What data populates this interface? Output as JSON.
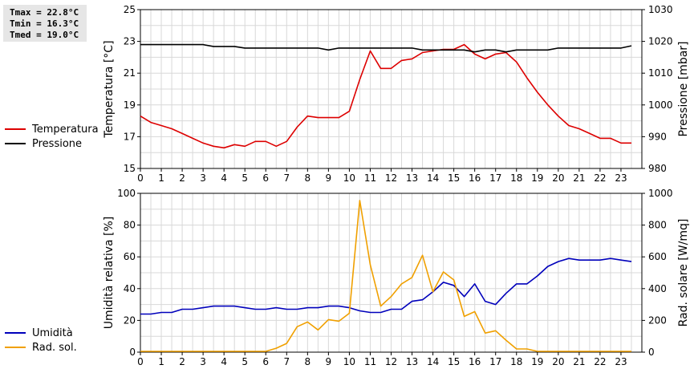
{
  "stats": {
    "tmax": "Tmax = 22.8°C",
    "tmin": "Tmin = 16.3°C",
    "tmed": "Tmed = 19.0°C"
  },
  "legend_top": [
    {
      "label": "Temperatura",
      "color": "#dd0000"
    },
    {
      "label": "Pressione",
      "color": "#000000"
    }
  ],
  "legend_bottom": [
    {
      "label": "Umidità",
      "color": "#0000bb"
    },
    {
      "label": "Rad. sol.",
      "color": "#f0a000"
    }
  ],
  "chart_data": [
    {
      "type": "line",
      "ylabel": "Temperatura [°C]",
      "y2label": "Pressione [mbar]",
      "xlim": [
        0,
        24
      ],
      "xticks": [
        0,
        1,
        2,
        3,
        4,
        5,
        6,
        7,
        8,
        9,
        10,
        11,
        12,
        13,
        14,
        15,
        16,
        17,
        18,
        19,
        20,
        21,
        22,
        23
      ],
      "ylim": [
        15,
        25
      ],
      "yticks": [
        15,
        17,
        19,
        21,
        23,
        25
      ],
      "y2lim": [
        980,
        1030
      ],
      "y2ticks": [
        980,
        990,
        1000,
        1010,
        1020,
        1030
      ],
      "grid": true,
      "series": [
        {
          "name": "Temperatura",
          "axis": "left",
          "color": "#dd0000",
          "x": [
            0,
            0.5,
            1,
            1.5,
            2,
            2.5,
            3,
            3.5,
            4,
            4.5,
            5,
            5.5,
            6,
            6.5,
            7,
            7.5,
            8,
            8.5,
            9,
            9.5,
            10,
            10.5,
            11,
            11.5,
            12,
            12.5,
            13,
            13.5,
            14,
            14.5,
            15,
            15.5,
            16,
            16.5,
            17,
            17.5,
            18,
            18.5,
            19,
            19.5,
            20,
            20.5,
            21,
            21.5,
            22,
            22.5,
            23,
            23.5
          ],
          "y": [
            18.3,
            17.9,
            17.7,
            17.5,
            17.2,
            16.9,
            16.6,
            16.4,
            16.3,
            16.5,
            16.4,
            16.7,
            16.7,
            16.4,
            16.7,
            17.6,
            18.3,
            18.2,
            18.2,
            18.2,
            18.6,
            20.6,
            22.4,
            21.3,
            21.3,
            21.8,
            21.9,
            22.3,
            22.4,
            22.5,
            22.5,
            22.8,
            22.2,
            21.9,
            22.2,
            22.3,
            21.7,
            20.7,
            19.8,
            19.0,
            18.3,
            17.7,
            17.5,
            17.2,
            16.9,
            16.9,
            16.6,
            16.6
          ]
        },
        {
          "name": "Pressione",
          "axis": "right",
          "color": "#000000",
          "x": [
            0,
            0.5,
            1,
            1.5,
            2,
            2.5,
            3,
            3.5,
            4,
            4.5,
            5,
            5.5,
            6,
            6.5,
            7,
            7.5,
            8,
            8.5,
            9,
            9.5,
            10,
            10.5,
            11,
            11.5,
            12,
            12.5,
            13,
            13.5,
            14,
            14.5,
            15,
            15.5,
            16,
            16.5,
            17,
            17.5,
            18,
            18.5,
            19,
            19.5,
            20,
            20.5,
            21,
            21.5,
            22,
            22.5,
            23,
            23.5
          ],
          "y": [
            1019,
            1019,
            1019,
            1019,
            1019,
            1019,
            1019,
            1018.4,
            1018.4,
            1018.4,
            1017.9,
            1017.9,
            1017.9,
            1017.9,
            1017.9,
            1017.9,
            1017.9,
            1017.9,
            1017.3,
            1017.9,
            1017.9,
            1017.9,
            1017.9,
            1017.9,
            1017.9,
            1017.9,
            1017.9,
            1017.3,
            1017.3,
            1017.3,
            1017.3,
            1017.3,
            1016.7,
            1017.3,
            1017.3,
            1016.7,
            1017.3,
            1017.3,
            1017.3,
            1017.3,
            1017.9,
            1017.9,
            1017.9,
            1017.9,
            1017.9,
            1017.9,
            1017.9,
            1018.6
          ]
        }
      ]
    },
    {
      "type": "line",
      "ylabel": "Umidità relativa [%]",
      "y2label": "Rad. solare [W/mq]",
      "xlim": [
        0,
        24
      ],
      "xticks": [
        0,
        1,
        2,
        3,
        4,
        5,
        6,
        7,
        8,
        9,
        10,
        11,
        12,
        13,
        14,
        15,
        16,
        17,
        18,
        19,
        20,
        21,
        22,
        23
      ],
      "ylim": [
        0,
        100
      ],
      "yticks": [
        0,
        20,
        40,
        60,
        80,
        100
      ],
      "y2lim": [
        0,
        1000
      ],
      "y2ticks": [
        0,
        200,
        400,
        600,
        800,
        1000
      ],
      "grid": true,
      "series": [
        {
          "name": "Umidità",
          "axis": "left",
          "color": "#0000bb",
          "x": [
            0,
            0.5,
            1,
            1.5,
            2,
            2.5,
            3,
            3.5,
            4,
            4.5,
            5,
            5.5,
            6,
            6.5,
            7,
            7.5,
            8,
            8.5,
            9,
            9.5,
            10,
            10.5,
            11,
            11.5,
            12,
            12.5,
            13,
            13.5,
            14,
            14.5,
            15,
            15.5,
            16,
            16.5,
            17,
            17.5,
            18,
            18.5,
            19,
            19.5,
            20,
            20.5,
            21,
            21.5,
            22,
            22.5,
            23,
            23.5
          ],
          "y": [
            24,
            24,
            25,
            25,
            27,
            27,
            28,
            29,
            29,
            29,
            28,
            27,
            27,
            28,
            27,
            27,
            28,
            28,
            29,
            29,
            28,
            26,
            25,
            25,
            27,
            27,
            32,
            33,
            38,
            44,
            42,
            35,
            43,
            32,
            30,
            37,
            43,
            43,
            48,
            54,
            57,
            59,
            58,
            58,
            58,
            59,
            58,
            57
          ]
        },
        {
          "name": "Rad. sol.",
          "axis": "right",
          "color": "#f0a000",
          "x": [
            0,
            0.5,
            1,
            1.5,
            2,
            2.5,
            3,
            3.5,
            4,
            4.5,
            5,
            5.5,
            6,
            6.5,
            7,
            7.5,
            8,
            8.5,
            9,
            9.5,
            10,
            10.5,
            11,
            11.5,
            12,
            12.5,
            13,
            13.5,
            14,
            14.5,
            15,
            15.5,
            16,
            16.5,
            17,
            17.5,
            18,
            18.5,
            19,
            19.5,
            20,
            20.5,
            21,
            21.5,
            22,
            22.5,
            23,
            23.5
          ],
          "y": [
            5,
            5,
            5,
            5,
            5,
            5,
            5,
            5,
            5,
            5,
            5,
            5,
            5,
            25,
            55,
            160,
            190,
            140,
            205,
            195,
            245,
            955,
            550,
            290,
            350,
            430,
            470,
            610,
            380,
            505,
            455,
            225,
            255,
            120,
            135,
            75,
            20,
            20,
            5,
            5,
            5,
            5,
            5,
            5,
            5,
            5,
            5,
            5
          ]
        }
      ]
    }
  ]
}
